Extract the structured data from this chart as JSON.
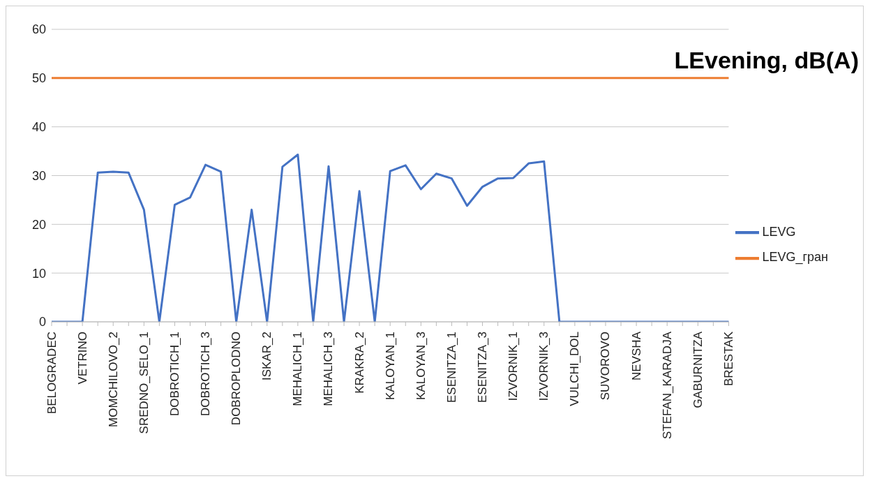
{
  "chart_data": {
    "type": "line",
    "title": "LEvening, dB(A)",
    "categories": [
      "BELOGRADEC",
      null,
      "VETRINO",
      null,
      "MOMCHILOVO_2",
      null,
      "SREDNO_SELO_1",
      null,
      "DOBROTICH_1",
      null,
      "DOBROTICH_3",
      null,
      "DOBROPLODNO",
      null,
      "ISKAR_2",
      null,
      "MEHALICH_1",
      null,
      "MEHALICH_3",
      null,
      "KRAKRA_2",
      null,
      "KALOYAN_1",
      null,
      "KALOYAN_3",
      null,
      "ESENITZA_1",
      null,
      "ESENITZA_3",
      null,
      "IZVORNIK_1",
      null,
      "IZVORNIK_3",
      null,
      "VULCHI_DOL",
      null,
      "SUVOROVO",
      null,
      "NEVSHA",
      null,
      "STEFAN_KARADJA",
      null,
      "GABURNITZA",
      null,
      "BRESTAK"
    ],
    "series": [
      {
        "name": "LEVG",
        "color": "#4472c4",
        "values": [
          0,
          0,
          0,
          30.6,
          30.8,
          30.6,
          23,
          0,
          24,
          25.5,
          32.2,
          30.8,
          0,
          23,
          0,
          31.8,
          34.3,
          0,
          31.9,
          0,
          26.8,
          0,
          30.9,
          32.1,
          27.2,
          30.4,
          29.4,
          23.8,
          27.7,
          29.4,
          29.5,
          32.5,
          32.9,
          0,
          0,
          0,
          0,
          0,
          0,
          0,
          0,
          0,
          0,
          0,
          0
        ]
      },
      {
        "name": "LEVG_гран",
        "color": "#ed7d31",
        "values": [
          50,
          50,
          50,
          50,
          50,
          50,
          50,
          50,
          50,
          50,
          50,
          50,
          50,
          50,
          50,
          50,
          50,
          50,
          50,
          50,
          50,
          50,
          50,
          50,
          50,
          50,
          50,
          50,
          50,
          50,
          50,
          50,
          50,
          50,
          50,
          50,
          50,
          50,
          50,
          50,
          50,
          50,
          50,
          50,
          50
        ]
      }
    ],
    "ylim": [
      0,
      60
    ],
    "yticks": [
      0,
      10,
      20,
      30,
      40,
      50,
      60
    ],
    "grid": "y",
    "legend": "right",
    "marker": "none",
    "line_style": "solid"
  }
}
